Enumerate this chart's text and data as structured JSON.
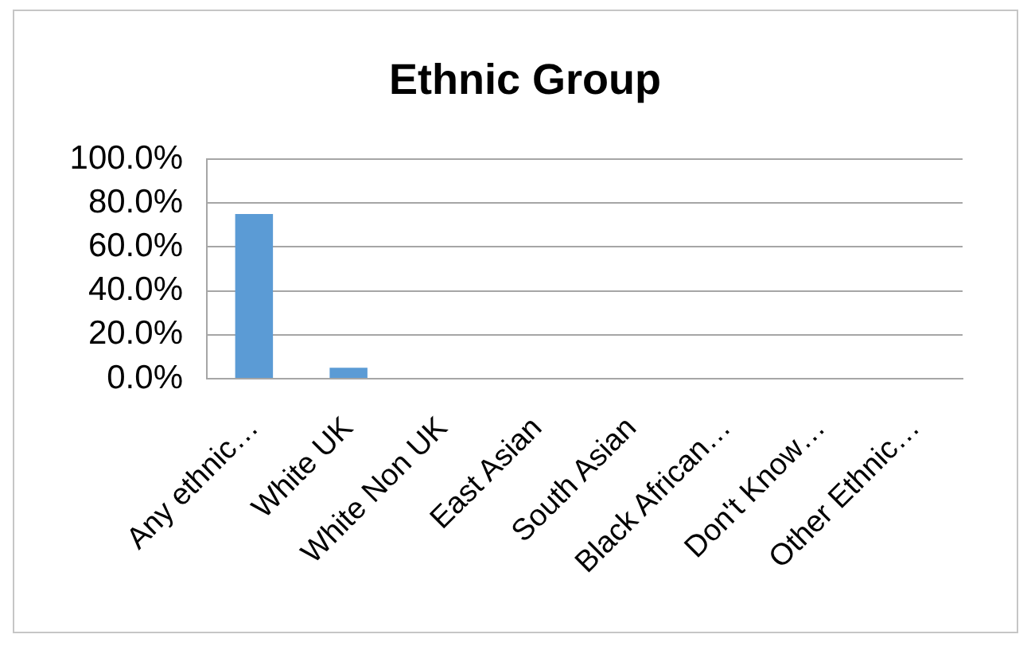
{
  "chart_data": {
    "type": "bar",
    "title": "Ethnic Group",
    "categories": [
      "Any ethnic…",
      "White UK",
      "White Non UK",
      "East Asian",
      "South Asian",
      "Black African…",
      "Don't Know…",
      "Other Ethnic…"
    ],
    "values": [
      75,
      5,
      0,
      0,
      0,
      0,
      0,
      0
    ],
    "color": "#5b9bd5",
    "ylim": [
      0,
      100
    ],
    "yticks": [
      {
        "value": 0,
        "label": "0.0%"
      },
      {
        "value": 20,
        "label": "20.0%"
      },
      {
        "value": 40,
        "label": "40.0%"
      },
      {
        "value": 60,
        "label": "60.0%"
      },
      {
        "value": 80,
        "label": "80.0%"
      },
      {
        "value": 100,
        "label": "100.0%"
      }
    ],
    "grid": "y"
  }
}
